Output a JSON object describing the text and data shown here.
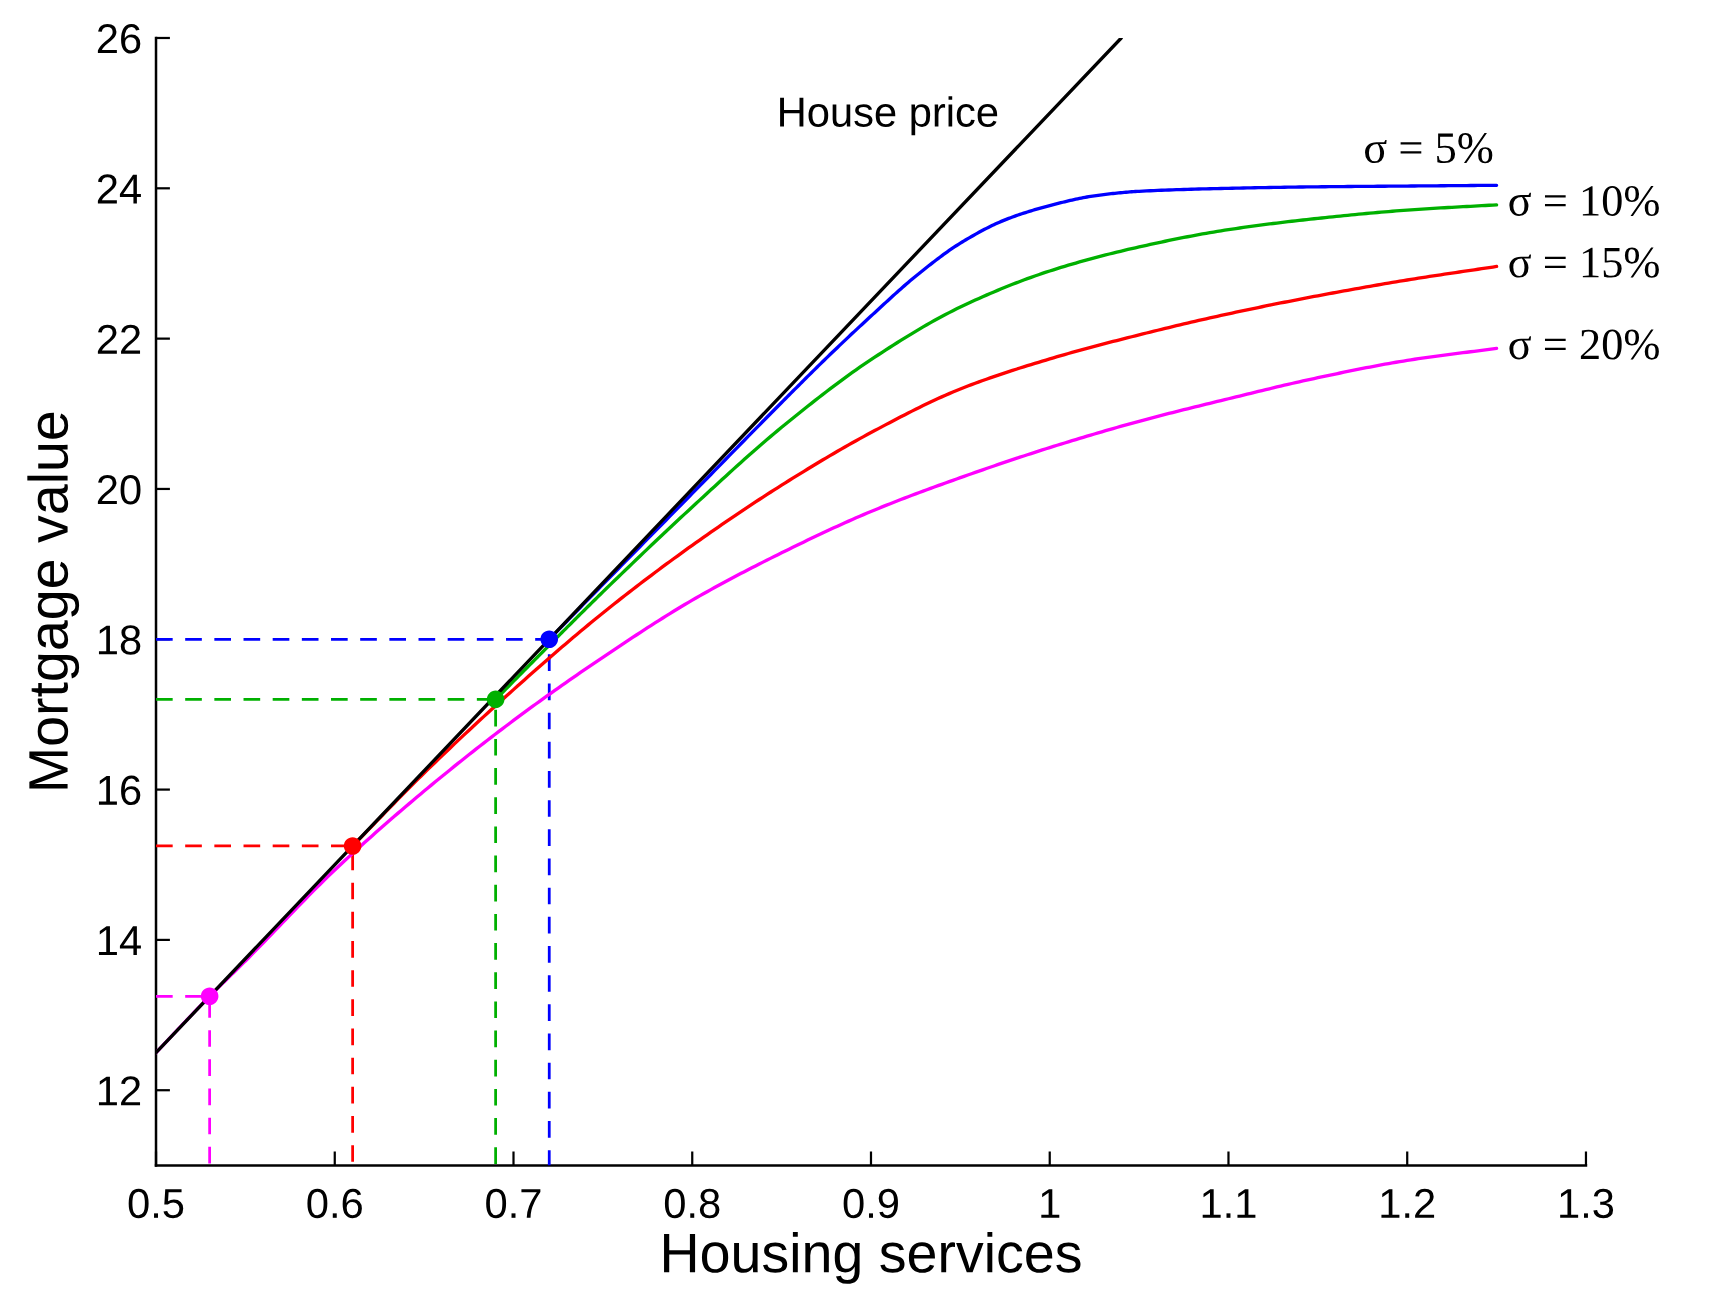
{
  "chart_data": {
    "type": "line",
    "xlabel": "Housing services",
    "ylabel": "Mortgage value",
    "xlim": [
      0.5,
      1.3
    ],
    "ylim": [
      11,
      26
    ],
    "xticks": [
      0.5,
      0.6,
      0.7,
      0.8,
      0.9,
      1,
      1.1,
      1.2,
      1.3
    ],
    "yticks": [
      12,
      14,
      16,
      18,
      20,
      22,
      24,
      26
    ],
    "grid": false,
    "marker": "none",
    "line_style": "solid",
    "series": [
      {
        "color": "#ff00ff",
        "line_style": "dashed",
        "x": [
          0.5,
          0.53,
          0.53
        ],
        "values": [
          13.25,
          13.25,
          11
        ]
      },
      {
        "color": "#ff0000",
        "line_style": "dashed",
        "x": [
          0.5,
          0.61,
          0.61
        ],
        "values": [
          15.25,
          15.25,
          11
        ]
      },
      {
        "color": "#00b000",
        "line_style": "dashed",
        "x": [
          0.5,
          0.69,
          0.69
        ],
        "values": [
          17.2,
          17.2,
          11
        ]
      },
      {
        "color": "#0000ff",
        "line_style": "dashed",
        "x": [
          0.5,
          0.72,
          0.72
        ],
        "values": [
          18,
          18,
          11
        ]
      },
      {
        "name": "σ = 5%",
        "color": "#0000ff",
        "x": [
          0.72,
          0.75,
          0.8,
          0.85,
          0.875,
          0.9,
          0.925,
          0.95,
          0.975,
          1,
          1.025,
          1.05,
          1.1,
          1.15,
          1.2,
          1.25
        ],
        "values": [
          18.0,
          18.73,
          19.94,
          21.15,
          21.74,
          22.3,
          22.83,
          23.27,
          23.58,
          23.77,
          23.9,
          23.96,
          24.0,
          24.02,
          24.03,
          24.04
        ]
      },
      {
        "name": "σ = 10%",
        "color": "#00b000",
        "x": [
          0.69,
          0.725,
          0.75,
          0.8,
          0.85,
          0.9,
          0.95,
          1,
          1.05,
          1.1,
          1.15,
          1.2,
          1.25
        ],
        "values": [
          17.2,
          18.04,
          18.63,
          19.76,
          20.82,
          21.72,
          22.42,
          22.9,
          23.22,
          23.45,
          23.6,
          23.71,
          23.78
        ]
      },
      {
        "name": "σ = 15%",
        "color": "#ff0000",
        "x": [
          0.61,
          0.65,
          0.7,
          0.75,
          0.8,
          0.85,
          0.9,
          0.95,
          1,
          1.05,
          1.1,
          1.15,
          1.2,
          1.25
        ],
        "values": [
          15.25,
          16.22,
          17.33,
          18.35,
          19.25,
          20.05,
          20.75,
          21.33,
          21.73,
          22.05,
          22.33,
          22.57,
          22.78,
          22.96
        ]
      },
      {
        "name": "σ = 20%",
        "color": "#ff00ff",
        "x": [
          0.5,
          0.53,
          0.55,
          0.6,
          0.65,
          0.7,
          0.75,
          0.8,
          0.85,
          0.9,
          0.95,
          1,
          1.05,
          1.1,
          1.15,
          1.2,
          1.25
        ],
        "values": [
          12.5,
          13.25,
          13.72,
          14.93,
          15.98,
          16.92,
          17.76,
          18.52,
          19.15,
          19.7,
          20.15,
          20.55,
          20.9,
          21.2,
          21.48,
          21.71,
          21.87
        ]
      },
      {
        "name": "House price",
        "color": "#000000",
        "x": [
          0.5,
          1.04
        ],
        "values": [
          12.5,
          26
        ]
      },
      {
        "type": "scatter",
        "marker": "circle",
        "color": "#ff00ff",
        "x": [
          0.53
        ],
        "values": [
          13.25
        ]
      },
      {
        "type": "scatter",
        "marker": "circle",
        "color": "#ff0000",
        "x": [
          0.61
        ],
        "values": [
          15.25
        ]
      },
      {
        "type": "scatter",
        "marker": "circle",
        "color": "#00b000",
        "x": [
          0.69
        ],
        "values": [
          17.2
        ]
      },
      {
        "type": "scatter",
        "marker": "circle",
        "color": "#0000ff",
        "x": [
          0.72
        ],
        "values": [
          18
        ]
      }
    ]
  }
}
